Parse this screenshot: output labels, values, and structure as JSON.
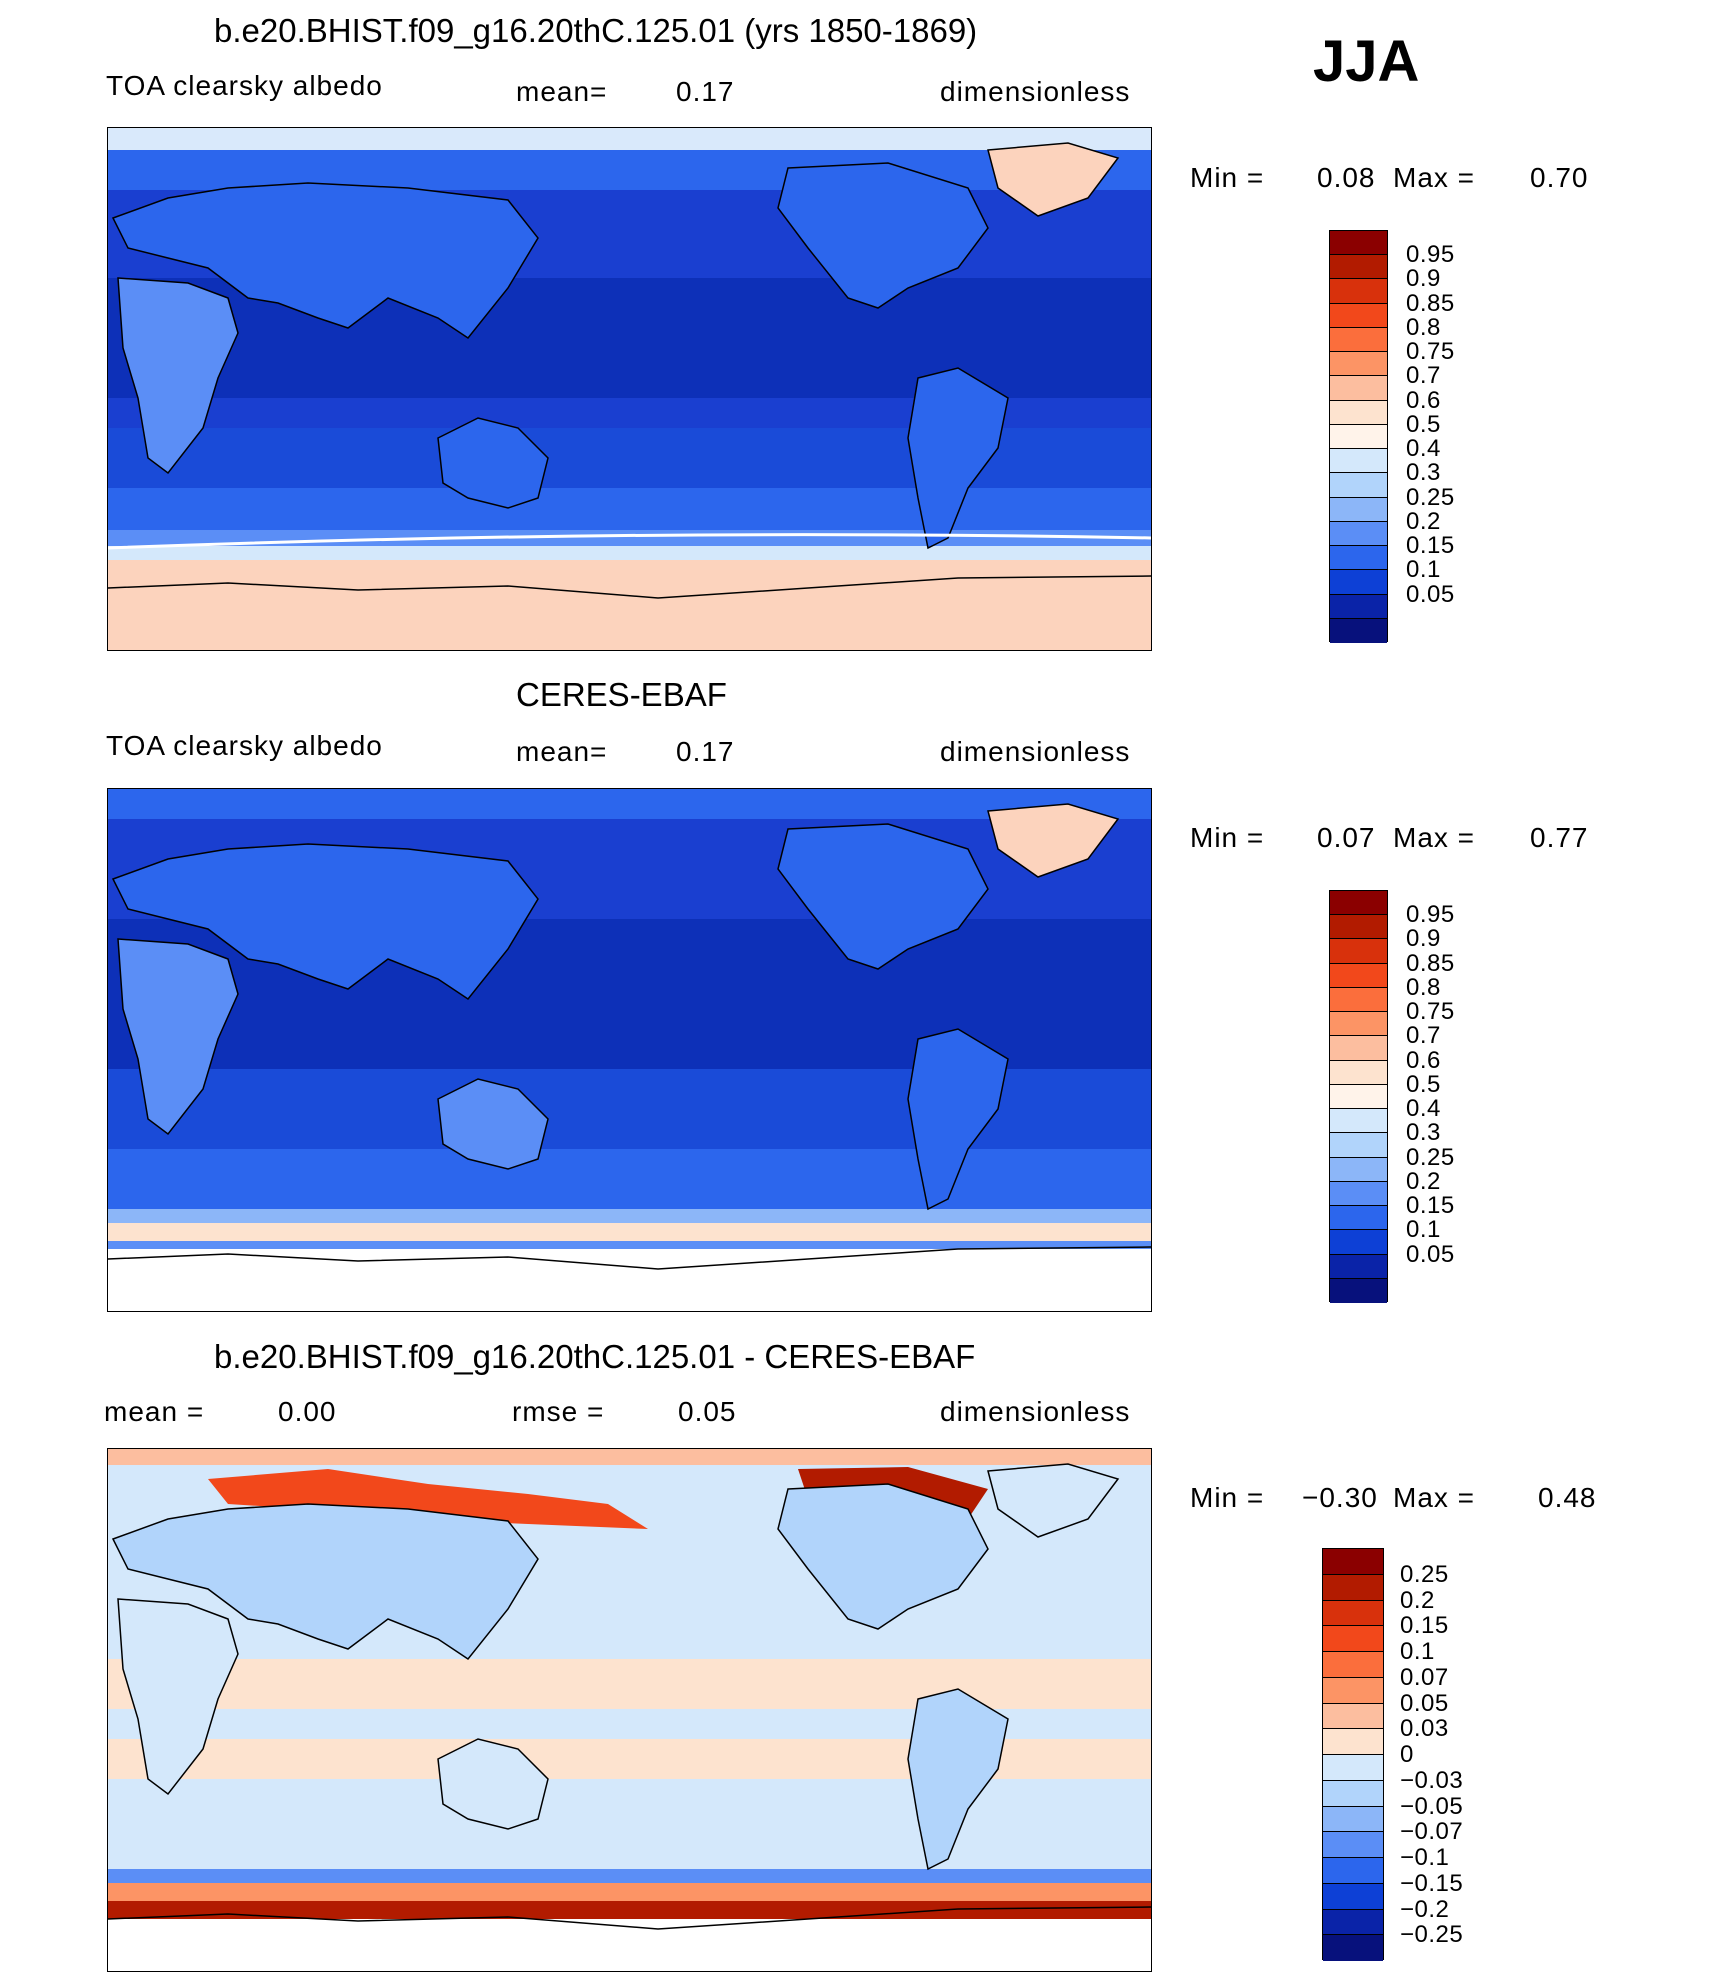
{
  "season": "JJA",
  "panels": [
    {
      "title": "b.e20.BHIST.f09_g16.20thC.125.01 (yrs 1850-1869)",
      "left_label": "TOA clearsky albedo",
      "mean_label": "mean=",
      "mean_value": "0.17",
      "units": "dimensionless",
      "min_label": "Min =",
      "min_value": "0.08",
      "max_label": "Max =",
      "max_value": "0.70"
    },
    {
      "title": "CERES-EBAF",
      "left_label": "TOA clearsky albedo",
      "mean_label": "mean=",
      "mean_value": "0.17",
      "units": "dimensionless",
      "min_label": "Min =",
      "min_value": "0.07",
      "max_label": "Max =",
      "max_value": "0.77"
    },
    {
      "title": "b.e20.BHIST.f09_g16.20thC.125.01 - CERES-EBAF",
      "left_label": "mean =",
      "left_value": "0.00",
      "mean_label": "rmse =",
      "mean_value": "0.05",
      "units": "dimensionless",
      "min_label": "Min =",
      "min_value": "−0.30",
      "max_label": "Max =",
      "max_value": "0.48"
    }
  ],
  "colorbar_abs": {
    "labels": [
      "0.95",
      "0.9",
      "0.85",
      "0.8",
      "0.75",
      "0.7",
      "0.6",
      "0.5",
      "0.4",
      "0.3",
      "0.25",
      "0.2",
      "0.15",
      "0.1",
      "0.05"
    ],
    "colors": [
      "#8b0000",
      "#b21b00",
      "#d8310c",
      "#f2481b",
      "#fb6e3c",
      "#fc9465",
      "#fcbe9f",
      "#fde3cf",
      "#fff3ea",
      "#d4e8fb",
      "#b1d4fb",
      "#8cb6f8",
      "#5b8ef6",
      "#2c66ed",
      "#0d40d6",
      "#0a23a8",
      "#07117c"
    ]
  },
  "colorbar_diff": {
    "labels": [
      "0.25",
      "0.2",
      "0.15",
      "0.1",
      "0.07",
      "0.05",
      "0.03",
      "0",
      "−0.03",
      "−0.05",
      "−0.07",
      "−0.1",
      "−0.15",
      "−0.2",
      "−0.25"
    ],
    "colors": [
      "#8b0000",
      "#b21b00",
      "#d8310c",
      "#f2481b",
      "#fb6e3c",
      "#fc9465",
      "#fcbe9f",
      "#fde3cf",
      "#d4e8fb",
      "#b1d4fb",
      "#8cb6f8",
      "#5b8ef6",
      "#2c66ed",
      "#0d40d6",
      "#0a23a8",
      "#07117c"
    ]
  }
}
